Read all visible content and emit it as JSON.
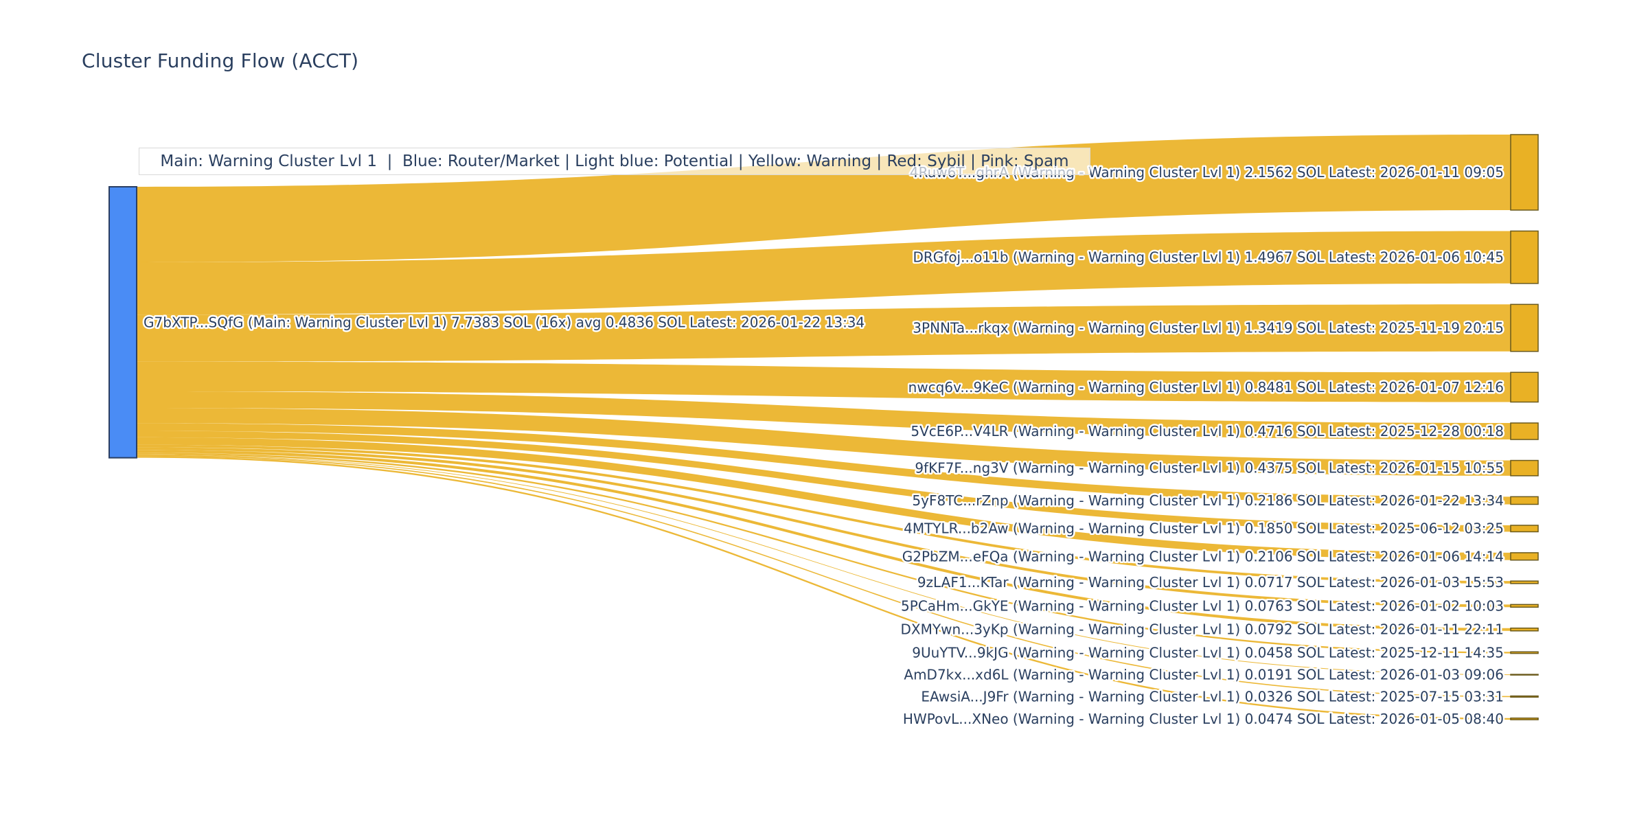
{
  "title": "Cluster Funding Flow (ACCT)",
  "annotation": "Main: Warning Cluster Lvl 1  |  Blue: Router/Market | Light blue: Potential | Yellow: Warning | Red: Sybil | Pink: Spam",
  "colors": {
    "title_text": "#2a3f5f",
    "label_text": "#2a3f5f",
    "source_node_fill": "#4a8cf5",
    "source_node_border": "#2b3f63",
    "target_node_fill": "#e9b125",
    "target_node_border": "#6b5a1c",
    "link_fill": "rgba(233,174,27,0.88)",
    "background": "#ffffff",
    "annotation_bg": "rgba(255,255,255,0.65)",
    "annotation_border": "#d9d9d9"
  },
  "chart_data": {
    "type": "sankey",
    "unit": "SOL",
    "title": "Cluster Funding Flow (ACCT)",
    "source": {
      "label": "G7bXTP...SQfG (Main: Warning Cluster Lvl 1) 7.7383 SOL (16x) avg 0.4836 SOL Latest: 2026-01-22 13:34",
      "address": "G7bXTP...SQfG",
      "role": "Main: Warning Cluster Lvl 1",
      "total_sol": 7.7383,
      "transfer_count": 16,
      "avg_sol": 0.4836,
      "latest": "2026-01-22 13:34"
    },
    "links": [
      {
        "label": "4Ruw6T...ghrA (Warning - Warning Cluster Lvl 1) 2.1562 SOL Latest: 2026-01-11 09:05",
        "target": "4Ruw6T...ghrA",
        "status": "Warning - Warning Cluster Lvl 1",
        "sol": 2.1562,
        "latest": "2026-01-11 09:05"
      },
      {
        "label": "DRGfoj...o11b (Warning - Warning Cluster Lvl 1) 1.4967 SOL Latest: 2026-01-06 10:45",
        "target": "DRGfoj...o11b",
        "status": "Warning - Warning Cluster Lvl 1",
        "sol": 1.4967,
        "latest": "2026-01-06 10:45"
      },
      {
        "label": "3PNNTa...rkqx (Warning - Warning Cluster Lvl 1) 1.3419 SOL Latest: 2025-11-19 20:15",
        "target": "3PNNTa...rkqx",
        "status": "Warning - Warning Cluster Lvl 1",
        "sol": 1.3419,
        "latest": "2025-11-19 20:15"
      },
      {
        "label": "nwcq6v...9KeC (Warning - Warning Cluster Lvl 1) 0.8481 SOL Latest: 2026-01-07 12:16",
        "target": "nwcq6v...9KeC",
        "status": "Warning - Warning Cluster Lvl 1",
        "sol": 0.8481,
        "latest": "2026-01-07 12:16"
      },
      {
        "label": "5VcE6P...V4LR (Warning - Warning Cluster Lvl 1) 0.4716 SOL Latest: 2025-12-28 00:18",
        "target": "5VcE6P...V4LR",
        "status": "Warning - Warning Cluster Lvl 1",
        "sol": 0.4716,
        "latest": "2025-12-28 00:18"
      },
      {
        "label": "9fKF7F...ng3V (Warning - Warning Cluster Lvl 1) 0.4375 SOL Latest: 2026-01-15 10:55",
        "target": "9fKF7F...ng3V",
        "status": "Warning - Warning Cluster Lvl 1",
        "sol": 0.4375,
        "latest": "2026-01-15 10:55"
      },
      {
        "label": "5yF8TC...rZnp (Warning - Warning Cluster Lvl 1) 0.2186 SOL Latest: 2026-01-22 13:34",
        "target": "5yF8TC...rZnp",
        "status": "Warning - Warning Cluster Lvl 1",
        "sol": 0.2186,
        "latest": "2026-01-22 13:34"
      },
      {
        "label": "4MTYLR...b2Aw (Warning - Warning Cluster Lvl 1) 0.1850 SOL Latest: 2025-06-12 03:25",
        "target": "4MTYLR...b2Aw",
        "status": "Warning - Warning Cluster Lvl 1",
        "sol": 0.185,
        "latest": "2025-06-12 03:25"
      },
      {
        "label": "G2PbZM...eFQa (Warning - Warning Cluster Lvl 1) 0.2106 SOL Latest: 2026-01-06 14:14",
        "target": "G2PbZM...eFQa",
        "status": "Warning - Warning Cluster Lvl 1",
        "sol": 0.2106,
        "latest": "2026-01-06 14:14"
      },
      {
        "label": "9zLAF1...KTar (Warning - Warning Cluster Lvl 1) 0.0717 SOL Latest: 2026-01-03 15:53",
        "target": "9zLAF1...KTar",
        "status": "Warning - Warning Cluster Lvl 1",
        "sol": 0.0717,
        "latest": "2026-01-03 15:53"
      },
      {
        "label": "5PCaHm...GkYE (Warning - Warning Cluster Lvl 1) 0.0763 SOL Latest: 2026-01-02 10:03",
        "target": "5PCaHm...GkYE",
        "status": "Warning - Warning Cluster Lvl 1",
        "sol": 0.0763,
        "latest": "2026-01-02 10:03"
      },
      {
        "label": "DXMYwn...3yKp (Warning - Warning Cluster Lvl 1) 0.0792 SOL Latest: 2026-01-11 22:11",
        "target": "DXMYwn...3yKp",
        "status": "Warning - Warning Cluster Lvl 1",
        "sol": 0.0792,
        "latest": "2026-01-11 22:11"
      },
      {
        "label": "9UuYTV...9kJG (Warning - Warning Cluster Lvl 1) 0.0458 SOL Latest: 2025-12-11 14:35",
        "target": "9UuYTV...9kJG",
        "status": "Warning - Warning Cluster Lvl 1",
        "sol": 0.0458,
        "latest": "2025-12-11 14:35"
      },
      {
        "label": "AmD7kx...xd6L (Warning - Warning Cluster Lvl 1) 0.0191 SOL Latest: 2026-01-03 09:06",
        "target": "AmD7kx...xd6L",
        "status": "Warning - Warning Cluster Lvl 1",
        "sol": 0.0191,
        "latest": "2026-01-03 09:06"
      },
      {
        "label": "EAwsiA...J9Fr (Warning - Warning Cluster Lvl 1) 0.0326 SOL Latest: 2025-07-15 03:31",
        "target": "EAwsiA...J9Fr",
        "status": "Warning - Warning Cluster Lvl 1",
        "sol": 0.0326,
        "latest": "2025-07-15 03:31"
      },
      {
        "label": "HWPovL...XNeo (Warning - Warning Cluster Lvl 1) 0.0474 SOL Latest: 2026-01-05 08:40",
        "target": "HWPovL...XNeo",
        "status": "Warning - Warning Cluster Lvl 1",
        "sol": 0.0474,
        "latest": "2026-01-05 08:40"
      }
    ]
  }
}
